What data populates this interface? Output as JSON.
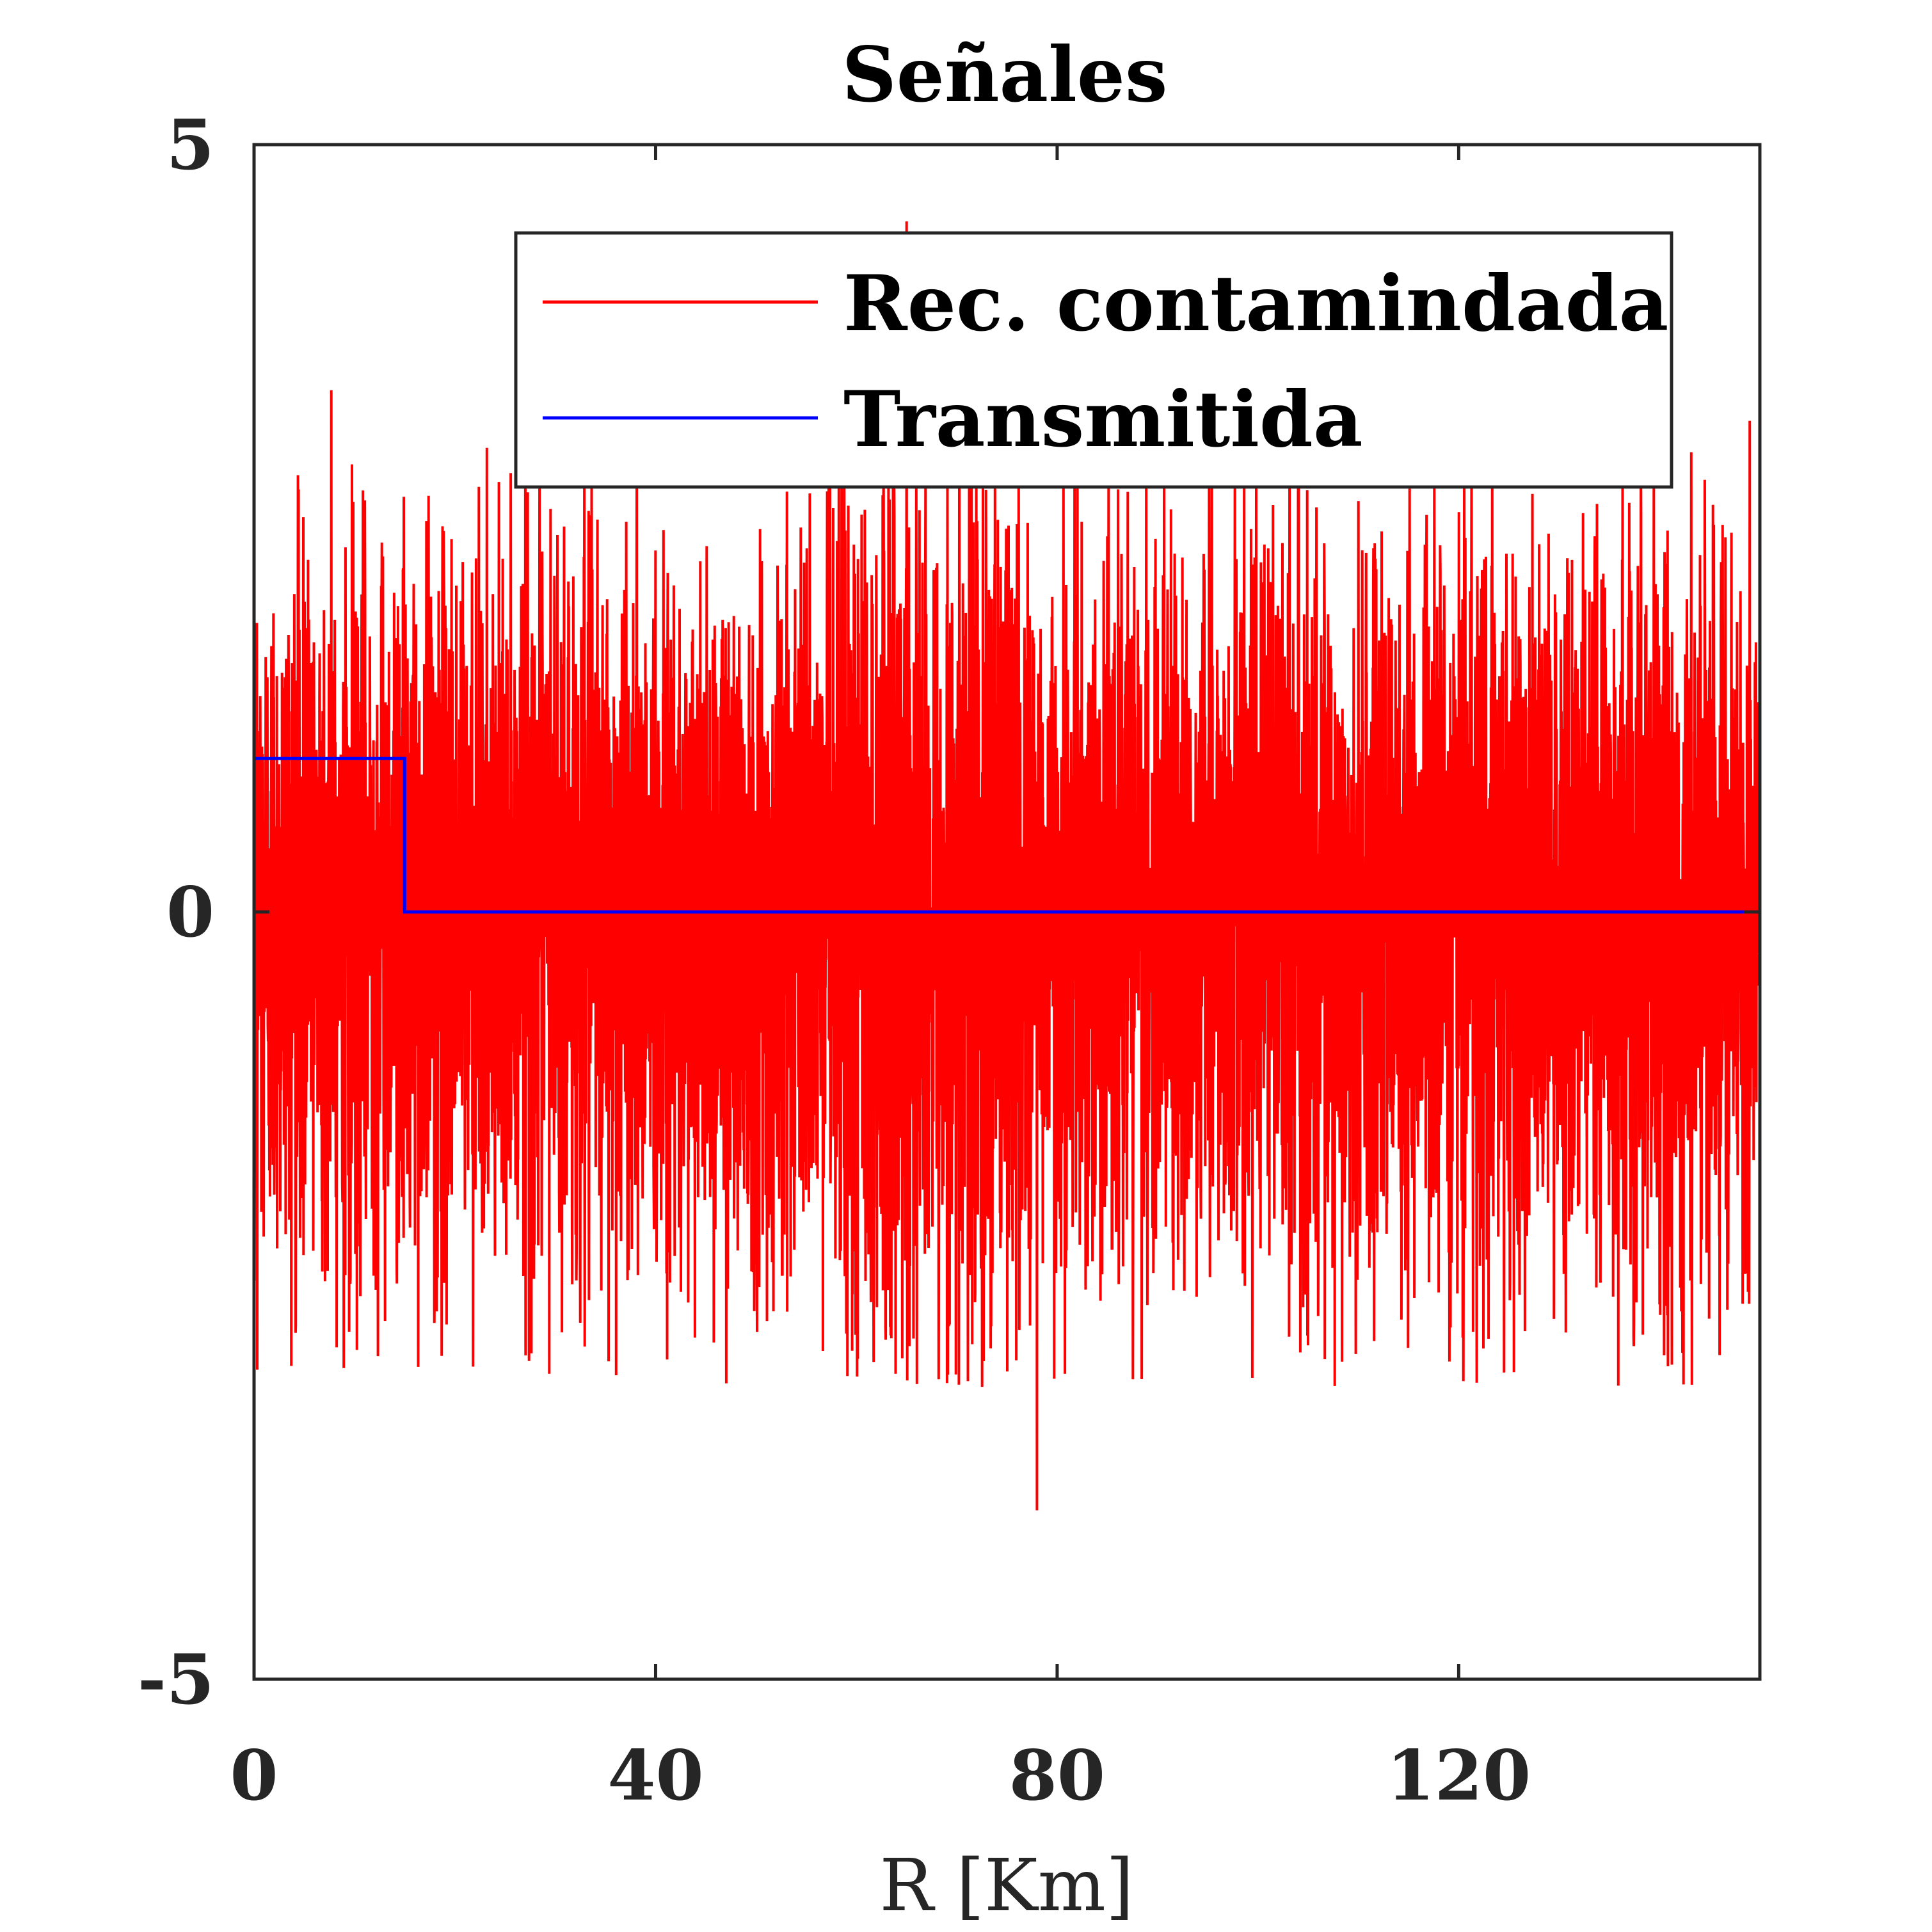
{
  "chart_data": {
    "type": "line",
    "title": "Señales",
    "xlabel": "R [Km]",
    "ylabel": "",
    "xlim": [
      0,
      150
    ],
    "ylim": [
      -5,
      5
    ],
    "xticks": [
      0,
      40,
      80,
      120
    ],
    "xtick_labels": [
      "0",
      "40",
      "80",
      "120"
    ],
    "yticks": [
      -5,
      0,
      5
    ],
    "ytick_labels": [
      "-5",
      "0",
      "5"
    ],
    "grid": false,
    "legend_position": "top-right",
    "series": [
      {
        "name": "Rec. contamindada",
        "color": "#ff0000",
        "description_of_values": "dense noise, approx. zero mean, std about 1.2; larger amplitude near R = 60-75",
        "x_range": [
          0,
          150
        ],
        "spikes": [
          {
            "x": 65,
            "y": 4.5
          },
          {
            "x": 78,
            "y": -3.9
          },
          {
            "x": 7.7,
            "y": 3.4
          },
          {
            "x": 149,
            "y": 3.2
          }
        ]
      },
      {
        "name": "Transmitida",
        "color": "#0000ff",
        "x": [
          0,
          15,
          15,
          150
        ],
        "y": [
          1,
          1,
          0,
          0
        ]
      }
    ]
  },
  "colors": {
    "axes": "#262626",
    "background": "#ffffff"
  }
}
